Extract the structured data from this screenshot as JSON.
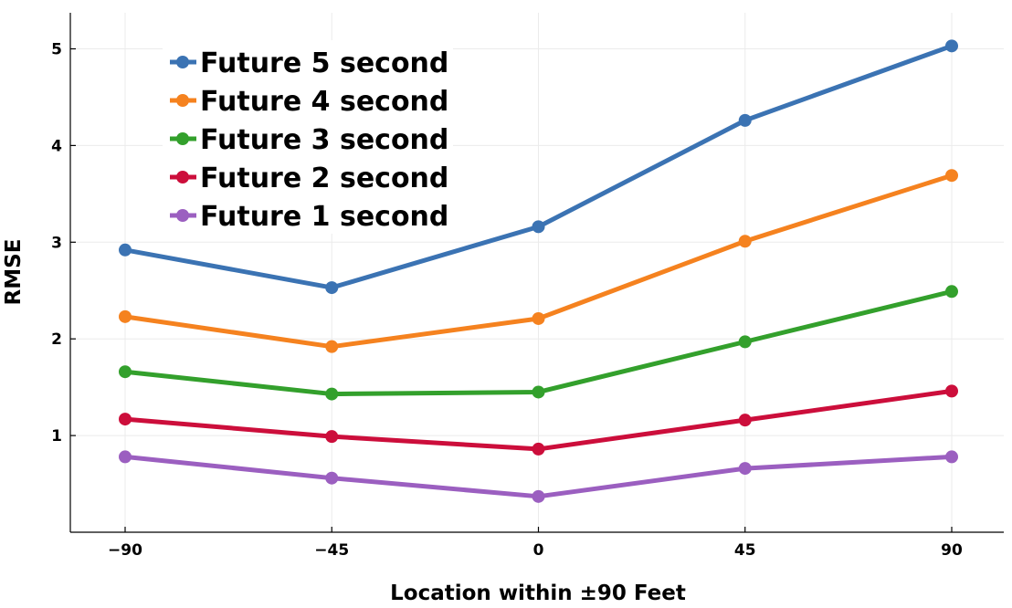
{
  "chart_data": {
    "type": "line",
    "xlabel": "Location within ±90 Feet",
    "ylabel": "RMSE",
    "x": [
      -90,
      -45,
      0,
      45,
      90
    ],
    "x_tick_labels": [
      "−90",
      "−45",
      "0",
      "45",
      "90"
    ],
    "y_ticks": [
      1,
      2,
      3,
      4,
      5
    ],
    "xlim": [
      -102,
      102
    ],
    "ylim": [
      0,
      5.4
    ],
    "grid": true,
    "legend_position": "top-left",
    "series": [
      {
        "name": "Future 5 second",
        "color": "#3b73b3",
        "values": [
          2.92,
          2.53,
          3.16,
          4.26,
          5.03
        ]
      },
      {
        "name": "Future 4 second",
        "color": "#f5821f",
        "values": [
          2.23,
          1.92,
          2.21,
          3.01,
          3.69
        ]
      },
      {
        "name": "Future 3 second",
        "color": "#33a02c",
        "values": [
          1.66,
          1.43,
          1.45,
          1.97,
          2.49
        ]
      },
      {
        "name": "Future 2 second",
        "color": "#cc0e3b",
        "values": [
          1.17,
          0.99,
          0.86,
          1.16,
          1.46
        ]
      },
      {
        "name": "Future 1 second",
        "color": "#9b5fc0",
        "values": [
          0.78,
          0.56,
          0.37,
          0.66,
          0.78
        ]
      }
    ]
  }
}
